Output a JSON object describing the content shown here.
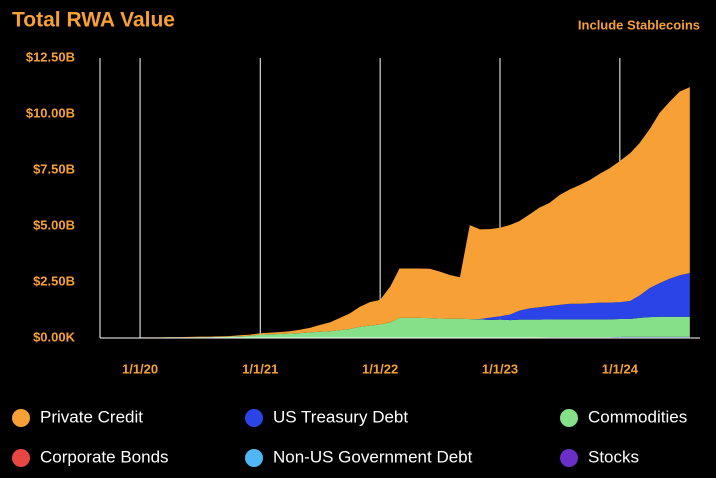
{
  "chart_data": {
    "type": "stacked_area",
    "title": "Total RWA Value",
    "toggle_label": "Include Stablecoins",
    "x": [
      "2020-01-01",
      "2020-02-01",
      "2020-03-01",
      "2020-04-01",
      "2020-05-01",
      "2020-06-01",
      "2020-07-01",
      "2020-08-01",
      "2020-09-01",
      "2020-10-01",
      "2020-11-01",
      "2020-12-01",
      "2021-01-01",
      "2021-02-01",
      "2021-03-01",
      "2021-04-01",
      "2021-05-01",
      "2021-06-01",
      "2021-07-01",
      "2021-08-01",
      "2021-09-01",
      "2021-10-01",
      "2021-11-01",
      "2021-12-01",
      "2022-01-01",
      "2022-02-01",
      "2022-03-01",
      "2022-04-01",
      "2022-05-01",
      "2022-06-01",
      "2022-07-01",
      "2022-08-01",
      "2022-09-01",
      "2022-10-01",
      "2022-11-01",
      "2022-12-01",
      "2023-01-01",
      "2023-02-01",
      "2023-03-01",
      "2023-04-01",
      "2023-05-01",
      "2023-06-01",
      "2023-07-01",
      "2023-08-01",
      "2023-09-01",
      "2023-10-01",
      "2023-11-01",
      "2023-12-01",
      "2024-01-01",
      "2024-02-01",
      "2024-03-01",
      "2024-04-01",
      "2024-05-01",
      "2024-06-01",
      "2024-07-01",
      "2024-08-01"
    ],
    "series": [
      {
        "name": "Private Credit",
        "color": "#f7a035",
        "values": [
          0.01,
          0.01,
          0.01,
          0.01,
          0.01,
          0.02,
          0.02,
          0.02,
          0.03,
          0.03,
          0.04,
          0.05,
          0.06,
          0.07,
          0.08,
          0.1,
          0.15,
          0.2,
          0.3,
          0.4,
          0.55,
          0.7,
          0.9,
          1.05,
          1.1,
          1.6,
          2.2,
          2.2,
          2.2,
          2.2,
          2.1,
          1.95,
          1.85,
          4.2,
          4.0,
          3.95,
          3.95,
          4.0,
          4.0,
          4.2,
          4.45,
          4.6,
          4.9,
          5.1,
          5.3,
          5.5,
          5.75,
          6.0,
          6.3,
          6.6,
          6.8,
          7.1,
          7.6,
          7.9,
          8.2,
          8.3
        ]
      },
      {
        "name": "US Treasury Debt",
        "color": "#2b44e8",
        "values": [
          0,
          0,
          0,
          0,
          0,
          0,
          0,
          0,
          0,
          0,
          0,
          0,
          0,
          0,
          0,
          0,
          0,
          0,
          0,
          0,
          0,
          0,
          0,
          0,
          0,
          0,
          0,
          0,
          0,
          0,
          0,
          0,
          0,
          0,
          0.02,
          0.1,
          0.15,
          0.25,
          0.4,
          0.5,
          0.55,
          0.6,
          0.65,
          0.7,
          0.7,
          0.72,
          0.75,
          0.75,
          0.75,
          0.8,
          1.0,
          1.3,
          1.5,
          1.7,
          1.85,
          1.95
        ]
      },
      {
        "name": "Commodities",
        "color": "#86e08a",
        "values": [
          0.02,
          0.02,
          0.02,
          0.03,
          0.03,
          0.03,
          0.04,
          0.04,
          0.05,
          0.06,
          0.08,
          0.1,
          0.15,
          0.17,
          0.18,
          0.2,
          0.22,
          0.25,
          0.28,
          0.3,
          0.35,
          0.4,
          0.5,
          0.55,
          0.6,
          0.7,
          0.9,
          0.9,
          0.9,
          0.88,
          0.86,
          0.85,
          0.85,
          0.83,
          0.82,
          0.8,
          0.8,
          0.78,
          0.8,
          0.8,
          0.8,
          0.8,
          0.8,
          0.8,
          0.8,
          0.8,
          0.8,
          0.8,
          0.8,
          0.8,
          0.85,
          0.88,
          0.9,
          0.9,
          0.9,
          0.9
        ]
      },
      {
        "name": "Corporate Bonds",
        "color": "#e84545",
        "values": [
          0,
          0,
          0,
          0,
          0,
          0,
          0,
          0,
          0,
          0,
          0,
          0,
          0,
          0,
          0,
          0,
          0,
          0,
          0,
          0,
          0,
          0,
          0,
          0,
          0,
          0,
          0,
          0,
          0,
          0,
          0,
          0,
          0,
          0,
          0,
          0,
          0.01,
          0.01,
          0.01,
          0.01,
          0.01,
          0.01,
          0.01,
          0.01,
          0.01,
          0.01,
          0.01,
          0.01,
          0.02,
          0.02,
          0.02,
          0.02,
          0.02,
          0.02,
          0.02,
          0.02
        ]
      },
      {
        "name": "Non-US Government Debt",
        "color": "#4fb7f5",
        "values": [
          0,
          0,
          0,
          0,
          0,
          0,
          0,
          0,
          0,
          0,
          0,
          0,
          0,
          0,
          0,
          0,
          0,
          0,
          0,
          0,
          0,
          0,
          0,
          0,
          0,
          0,
          0,
          0,
          0,
          0,
          0,
          0,
          0,
          0,
          0,
          0,
          0,
          0,
          0,
          0,
          0,
          0.01,
          0.01,
          0.01,
          0.01,
          0.01,
          0.01,
          0.01,
          0.02,
          0.02,
          0.02,
          0.02,
          0.02,
          0.02,
          0.02,
          0.02
        ]
      },
      {
        "name": "Stocks",
        "color": "#6a2fc9",
        "values": [
          0,
          0,
          0,
          0,
          0,
          0,
          0,
          0,
          0,
          0,
          0,
          0,
          0,
          0,
          0,
          0,
          0,
          0,
          0,
          0,
          0,
          0,
          0,
          0,
          0,
          0,
          0,
          0,
          0,
          0.01,
          0.01,
          0.01,
          0.01,
          0.01,
          0.01,
          0.01,
          0.01,
          0.01,
          0.01,
          0.01,
          0.01,
          0.01,
          0.01,
          0.01,
          0.01,
          0.01,
          0.01,
          0.01,
          0.01,
          0.01,
          0.01,
          0.01,
          0.01,
          0.01,
          0.01,
          0.01
        ]
      }
    ],
    "xlim": [
      "2019-09-01",
      "2024-09-01"
    ],
    "xticks": [
      {
        "value": "2020-01-01",
        "label": "1/1/20"
      },
      {
        "value": "2021-01-01",
        "label": "1/1/21"
      },
      {
        "value": "2022-01-01",
        "label": "1/1/22"
      },
      {
        "value": "2023-01-01",
        "label": "1/1/23"
      },
      {
        "value": "2024-01-01",
        "label": "1/1/24"
      }
    ],
    "ylim": [
      0,
      12.5
    ],
    "yticks": [
      {
        "value": 0,
        "label": "$0.00K"
      },
      {
        "value": 2.5,
        "label": "$2.50B"
      },
      {
        "value": 5,
        "label": "$5.00B"
      },
      {
        "value": 7.5,
        "label": "$7.50B"
      },
      {
        "value": 10,
        "label": "$10.00B"
      },
      {
        "value": 12.5,
        "label": "$12.50B"
      }
    ],
    "grid": true
  }
}
